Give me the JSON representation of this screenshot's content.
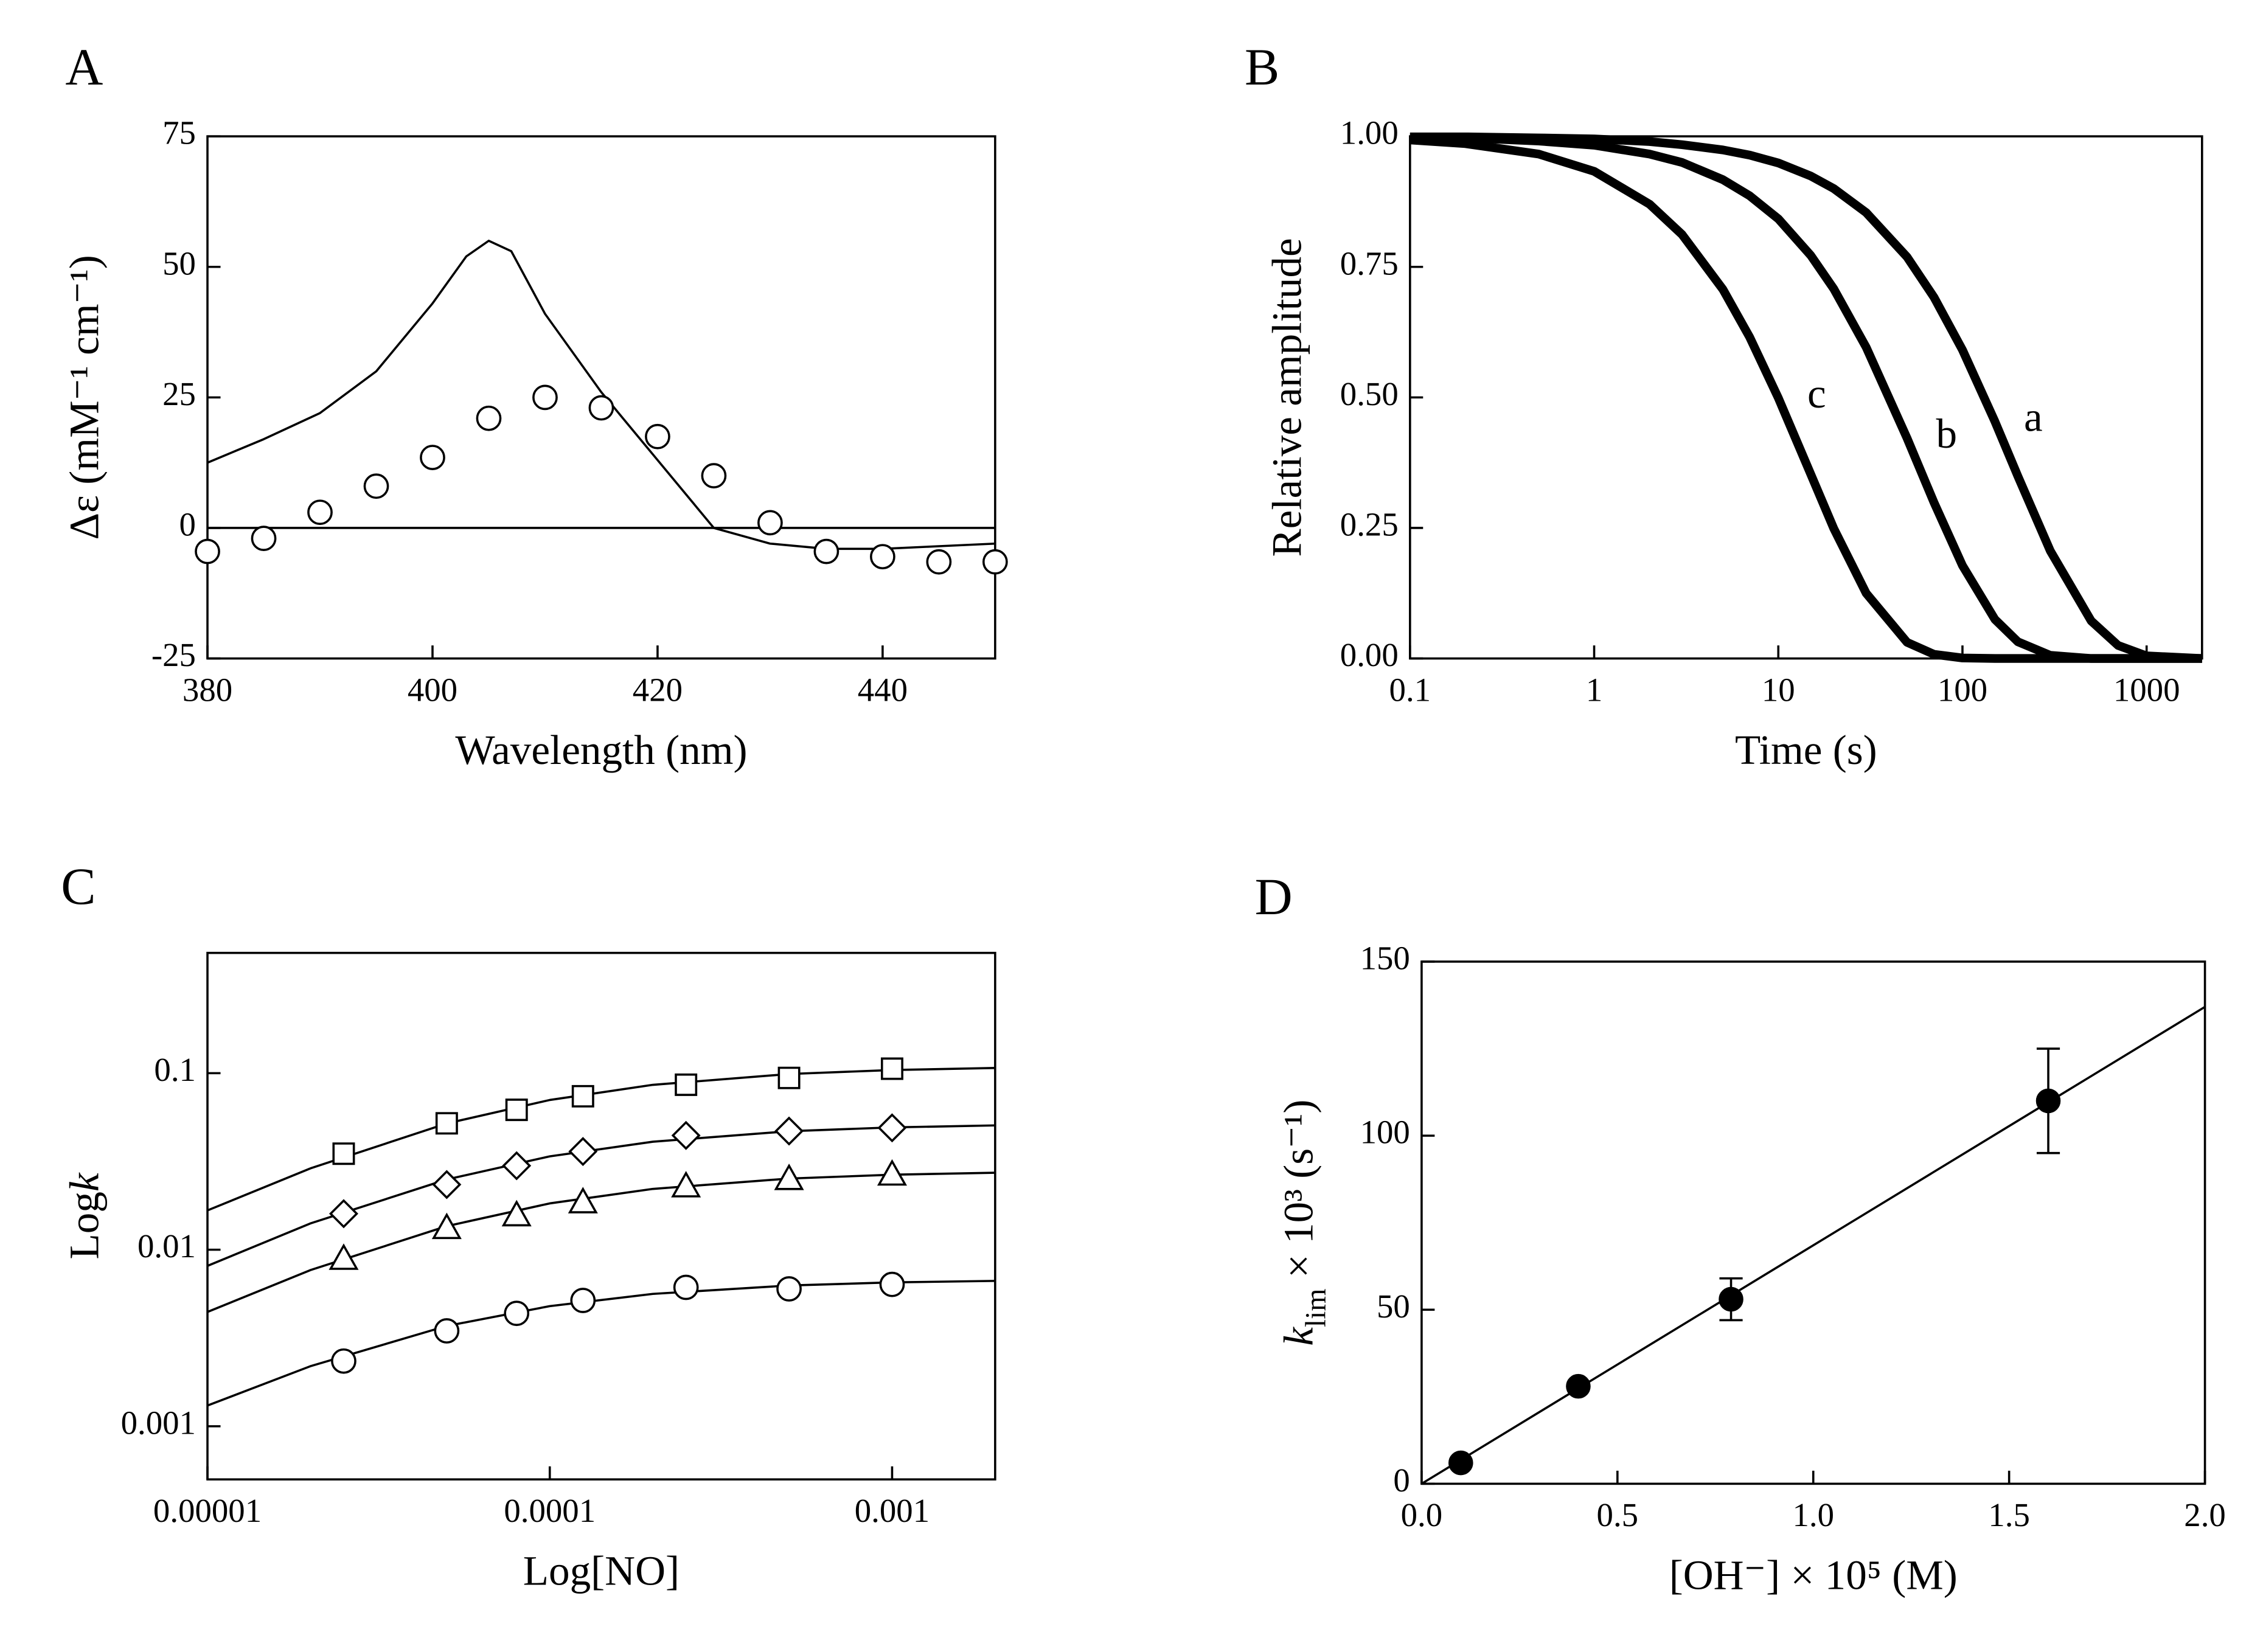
{
  "chart_data": [
    {
      "type": "line",
      "panel": "A",
      "xlabel": "Wavelength (nm)",
      "ylabel": [
        "Δε (mM⁻¹ cm⁻¹)"
      ],
      "ylabel_style": [
        "normal"
      ],
      "xlim": [
        380,
        450
      ],
      "ylim": [
        -25,
        75
      ],
      "xticks": [
        380,
        400,
        420,
        440
      ],
      "yticks": [
        -25,
        0,
        25,
        50,
        75
      ],
      "zero_line": true,
      "line_width": 1.5,
      "series": [
        {
          "style": "line",
          "color": "#000000",
          "x": [
            380,
            385,
            390,
            395,
            400,
            403,
            405,
            407,
            410,
            415,
            420,
            425,
            430,
            435,
            440,
            445,
            450
          ],
          "values": [
            12.5,
            17,
            22,
            30,
            43,
            52,
            55,
            53,
            41,
            26,
            13,
            0,
            -3,
            -4,
            -4,
            -3.5,
            -3
          ]
        },
        {
          "style": "markers",
          "marker": "circle",
          "color": "#000000",
          "x": [
            380,
            385,
            390,
            395,
            400,
            405,
            410,
            415,
            420,
            425,
            430,
            435,
            440,
            445,
            450
          ],
          "values": [
            -4.5,
            -2,
            3,
            8,
            13.5,
            21,
            25,
            23,
            17.5,
            10,
            1,
            -4.5,
            -5.5,
            -6.5,
            -6.5
          ]
        }
      ]
    },
    {
      "type": "line",
      "panel": "B",
      "xlabel": "Time (s)",
      "ylabel": [
        "Relative amplitude"
      ],
      "ylabel_style": [
        "normal"
      ],
      "xscale": "log",
      "xlim": [
        0.1,
        2000
      ],
      "ylim": [
        0,
        1
      ],
      "xticks": [
        0.1,
        1,
        10,
        100,
        1000
      ],
      "yticks": [
        {
          "value": 0,
          "label": "0.00"
        },
        {
          "value": 0.25,
          "label": "0.25"
        },
        {
          "value": 0.5,
          "label": "0.50"
        },
        {
          "value": 0.75,
          "label": "0.75"
        },
        {
          "value": 1,
          "label": "1.00"
        }
      ],
      "line_width": 6,
      "series_labels": true,
      "x": [
        0.1,
        0.2,
        0.5,
        1,
        2,
        3,
        5,
        7,
        10,
        15,
        20,
        30,
        50,
        70,
        100,
        150,
        200,
        300,
        500,
        700,
        1000,
        2000
      ],
      "series": [
        {
          "name": "a",
          "style": "line",
          "color": "#000000",
          "values": [
            0.999,
            0.999,
            0.997,
            0.995,
            0.99,
            0.984,
            0.974,
            0.964,
            0.949,
            0.924,
            0.9,
            0.854,
            0.769,
            0.692,
            0.591,
            0.454,
            0.349,
            0.206,
            0.072,
            0.025,
            0.005,
            0
          ]
        },
        {
          "name": "b",
          "style": "line",
          "color": "#000000",
          "values": [
            0.998,
            0.997,
            0.991,
            0.983,
            0.966,
            0.95,
            0.917,
            0.886,
            0.842,
            0.772,
            0.708,
            0.596,
            0.422,
            0.299,
            0.178,
            0.075,
            0.032,
            0.006,
            0,
            0,
            0,
            0
          ]
        },
        {
          "name": "c",
          "style": "line",
          "color": "#000000",
          "values": [
            0.993,
            0.986,
            0.966,
            0.933,
            0.87,
            0.812,
            0.707,
            0.615,
            0.499,
            0.353,
            0.249,
            0.125,
            0.031,
            0.008,
            0.001,
            0,
            0,
            0,
            0,
            0,
            0,
            0
          ]
        }
      ]
    },
    {
      "type": "scatter",
      "panel": "C",
      "xlabel": "Log[NO]",
      "ylabel": [
        "Log",
        "k"
      ],
      "ylabel_style": [
        "normal",
        "italic"
      ],
      "xscale": "log",
      "yscale": "log",
      "xlim": [
        1e-05,
        0.002
      ],
      "ylim": [
        0.0005,
        0.48
      ],
      "xticks": [
        {
          "value": 1e-05,
          "label": "0.00001"
        },
        0.0001,
        0.001
      ],
      "yticks": [
        0.001,
        0.01,
        0.1
      ],
      "line_width": 1.5,
      "x": [
        2.5e-05,
        5e-05,
        8e-05,
        0.000125,
        0.00025,
        0.0005,
        0.001
      ],
      "fit_x": [
        1e-05,
        2e-05,
        5e-05,
        0.0001,
        0.0002,
        0.0005,
        0.001,
        0.002
      ],
      "series": [
        {
          "marker": "square",
          "color": "#000000",
          "values": [
            0.035,
            0.052,
            0.062,
            0.074,
            0.086,
            0.094,
            0.106
          ],
          "fit": [
            0.0167,
            0.0289,
            0.0519,
            0.0705,
            0.0859,
            0.0989,
            0.1042,
            0.107
          ]
        },
        {
          "marker": "diamond",
          "color": "#000000",
          "values": [
            0.016,
            0.0234,
            0.0299,
            0.036,
            0.0444,
            0.047,
            0.049
          ],
          "fit": [
            0.0081,
            0.0141,
            0.025,
            0.0338,
            0.0409,
            0.0469,
            0.0493,
            0.0506
          ]
        },
        {
          "marker": "triangle",
          "color": "#000000",
          "values": [
            0.0089,
            0.0133,
            0.0157,
            0.0186,
            0.0229,
            0.0252,
            0.0267
          ],
          "fit": [
            0.00444,
            0.00767,
            0.0136,
            0.0183,
            0.0221,
            0.0253,
            0.0266,
            0.0273
          ]
        },
        {
          "marker": "circle",
          "color": "#000000",
          "values": [
            0.00234,
            0.00347,
            0.00436,
            0.00516,
            0.00612,
            0.006,
            0.00636
          ],
          "fit": [
            0.00131,
            0.00219,
            0.0037,
            0.00479,
            0.00562,
            0.00627,
            0.00653,
            0.00666
          ]
        }
      ]
    },
    {
      "type": "scatter",
      "panel": "D",
      "xlabel": "[OH⁻] × 10⁵ (M)",
      "ylabel": [
        "k",
        "lim",
        " × 10³ (s⁻¹)"
      ],
      "ylabel_style": [
        "italic",
        "sub",
        "normal"
      ],
      "xlim": [
        0,
        2
      ],
      "ylim": [
        0,
        150
      ],
      "xticks": [
        {
          "value": 0,
          "label": "0.0"
        },
        0.5,
        {
          "value": 1,
          "label": "1.0"
        },
        1.5,
        {
          "value": 2,
          "label": "2.0"
        }
      ],
      "yticks": [
        0,
        50,
        100,
        150
      ],
      "line_width": 1.5,
      "x": [
        0.1,
        0.4,
        0.79,
        1.6
      ],
      "fit_x": [
        0,
        2
      ],
      "series": [
        {
          "marker": "filled-circle",
          "color": "#000000",
          "values": [
            6,
            28,
            53,
            110
          ],
          "errors": [
            0,
            0,
            6,
            15
          ],
          "fit": [
            0,
            137
          ]
        }
      ]
    }
  ]
}
